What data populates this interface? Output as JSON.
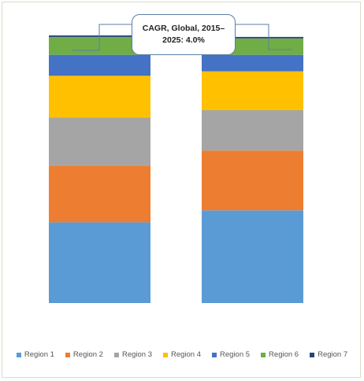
{
  "chart_data": {
    "type": "bar",
    "stacked": true,
    "categories": [
      "",
      ""
    ],
    "series": [
      {
        "name": "Region 1",
        "color": "#5b9bd5",
        "values": [
          27,
          31
        ]
      },
      {
        "name": "Region 2",
        "color": "#ed7d31",
        "values": [
          19,
          20
        ]
      },
      {
        "name": "Region 3",
        "color": "#a5a5a5",
        "values": [
          16,
          13.5
        ]
      },
      {
        "name": "Region 4",
        "color": "#ffc000",
        "values": [
          14,
          13
        ]
      },
      {
        "name": "Region 5",
        "color": "#4472c4",
        "values": [
          7,
          5.5
        ]
      },
      {
        "name": "Region 6",
        "color": "#70ad47",
        "values": [
          6,
          5.5
        ]
      },
      {
        "name": "Region 7",
        "color": "#264478",
        "values": [
          0.5,
          0.5
        ]
      }
    ],
    "ylim": [
      0,
      89.5
    ],
    "grid": false,
    "legend_position": "bottom",
    "annotation": "CAGR, Global, 2015–2025: 4.0%"
  }
}
